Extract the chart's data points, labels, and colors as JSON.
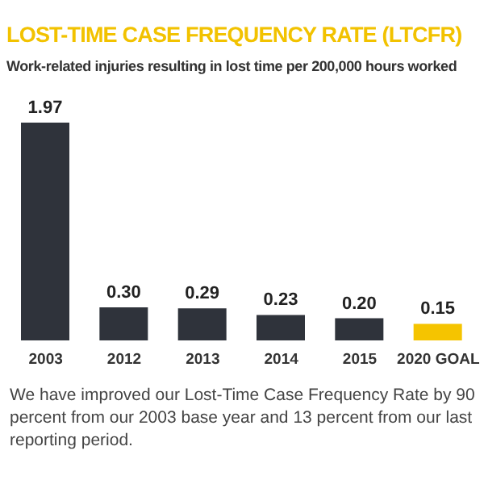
{
  "chart_data": {
    "type": "bar",
    "title": "LOST-TIME CASE FREQUENCY RATE (LTCFR)",
    "subtitle": "Work-related injuries resulting in lost time per 200,000 hours worked",
    "categories": [
      "2003",
      "2012",
      "2013",
      "2014",
      "2015",
      "2020 GOAL"
    ],
    "values": [
      1.97,
      0.3,
      0.29,
      0.23,
      0.2,
      0.15
    ],
    "colors": [
      "#2f333b",
      "#2f333b",
      "#2f333b",
      "#2f333b",
      "#2f333b",
      "#f5c400"
    ],
    "value_labels": [
      "1.97",
      "0.30",
      "0.29",
      "0.23",
      "0.20",
      "0.15"
    ],
    "annotations": [
      "We have improved our Lost-Time Case Frequency Rate by 90 percent from our 2003 base year and 13 percent from our last reporting period."
    ]
  }
}
